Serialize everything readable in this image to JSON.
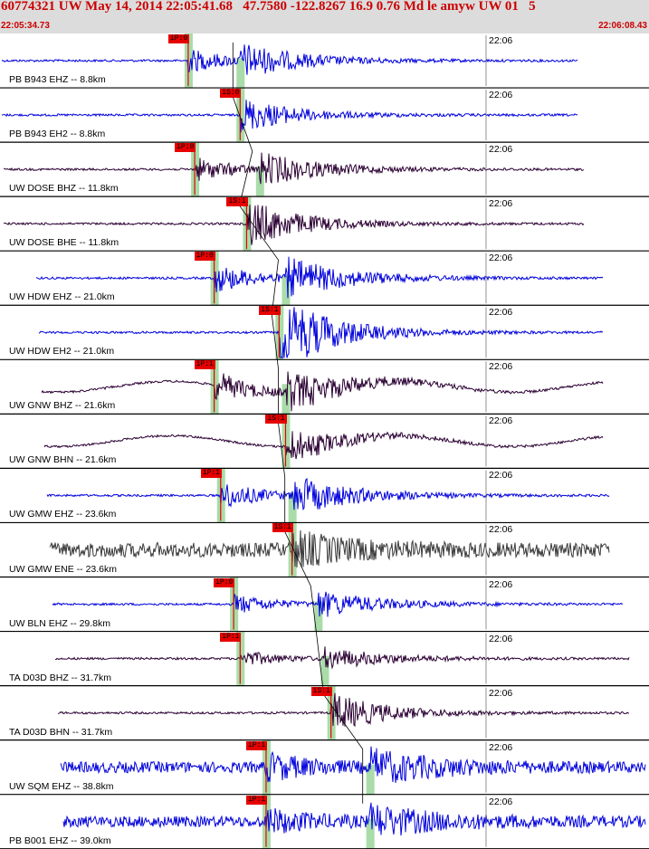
{
  "header": {
    "title": "60774321 UW May 14, 2014 22:05:41.68   47.7580 -122.8267 16.9 0.76 Md le amyw UW 01   5",
    "start_time": "22:05:34.73",
    "end_time": "22:06:08.43"
  },
  "colors": {
    "header_bg": "#dcdcdc",
    "header_text": "#cc0000",
    "trace_blue": "#0000dd",
    "trace_purple": "#2b0033",
    "trace_gray": "#3a3a3a",
    "pick": "#e60000",
    "window": "#a9dca9"
  },
  "time_tick_label": "22:06",
  "traces": [
    {
      "label": "PB B943 EHZ -- 8.8km",
      "pick": "iP:0",
      "color": "blue",
      "amp": 0.6,
      "pick_frac": 0.29,
      "s_frac": 0.37,
      "end_frac": 0.89
    },
    {
      "label": "PB B943 EH2 -- 8.8km",
      "pick": "iS:0",
      "color": "blue",
      "amp": 0.4,
      "pick_frac": 0.37,
      "s_frac": 0.37,
      "end_frac": 0.89
    },
    {
      "label": "UW DOSE BHZ -- 11.8km",
      "pick": "iP:0",
      "color": "purple",
      "amp": 0.6,
      "pick_frac": 0.3,
      "s_frac": 0.4,
      "end_frac": 0.9
    },
    {
      "label": "UW DOSE BHE -- 11.8km",
      "pick": "iS:1",
      "color": "purple",
      "amp": 0.55,
      "pick_frac": 0.38,
      "s_frac": 0.38,
      "end_frac": 0.9
    },
    {
      "label": "UW HDW EHZ -- 21.0km",
      "pick": "iP:0",
      "color": "blue",
      "amp": 0.75,
      "pick_frac": 0.33,
      "s_frac": 0.44,
      "end_frac": 0.93
    },
    {
      "label": "UW HDW EH2 -- 21.0km",
      "pick": "iS:1",
      "color": "blue",
      "amp": 0.9,
      "pick_frac": 0.43,
      "s_frac": 0.43,
      "end_frac": 0.93
    },
    {
      "label": "UW GNW BHZ -- 21.6km",
      "pick": "iP:1",
      "color": "purple",
      "amp": 0.75,
      "pick_frac": 0.33,
      "s_frac": 0.44,
      "end_frac": 0.93
    },
    {
      "label": "UW GNW BHN -- 21.6km",
      "pick": "iS:1",
      "color": "purple",
      "amp": 0.4,
      "pick_frac": 0.44,
      "s_frac": 0.44,
      "end_frac": 0.93
    },
    {
      "label": "UW GMW EHZ -- 23.6km",
      "pick": "iP:1",
      "color": "blue",
      "amp": 0.7,
      "pick_frac": 0.34,
      "s_frac": 0.45,
      "end_frac": 0.94
    },
    {
      "label": "UW GMW ENE -- 23.6km",
      "pick": "iS:1",
      "color": "gray",
      "amp": 0.35,
      "pick_frac": 0.45,
      "s_frac": 0.45,
      "end_frac": 0.94
    },
    {
      "label": "UW BLN EHZ -- 29.8km",
      "pick": "iP:0",
      "color": "blue",
      "amp": 0.5,
      "pick_frac": 0.36,
      "s_frac": 0.49,
      "end_frac": 0.96
    },
    {
      "label": "TA D03D BHZ -- 31.7km",
      "pick": "iP:1",
      "color": "purple",
      "amp": 0.4,
      "pick_frac": 0.37,
      "s_frac": 0.5,
      "end_frac": 0.97
    },
    {
      "label": "TA D03D BHN -- 31.7km",
      "pick": "iS:1",
      "color": "purple",
      "amp": 0.45,
      "pick_frac": 0.51,
      "s_frac": 0.51,
      "end_frac": 0.97
    },
    {
      "label": "UW SQM EHZ -- 38.8km",
      "pick": "iP:1",
      "color": "blue",
      "amp": 0.6,
      "pick_frac": 0.41,
      "s_frac": 0.57,
      "end_frac": 0.995
    },
    {
      "label": "PB B001 EHZ -- 39.0km",
      "pick": "iP:1",
      "color": "blue",
      "amp": 0.55,
      "pick_frac": 0.41,
      "s_frac": 0.57,
      "end_frac": 0.995
    }
  ]
}
